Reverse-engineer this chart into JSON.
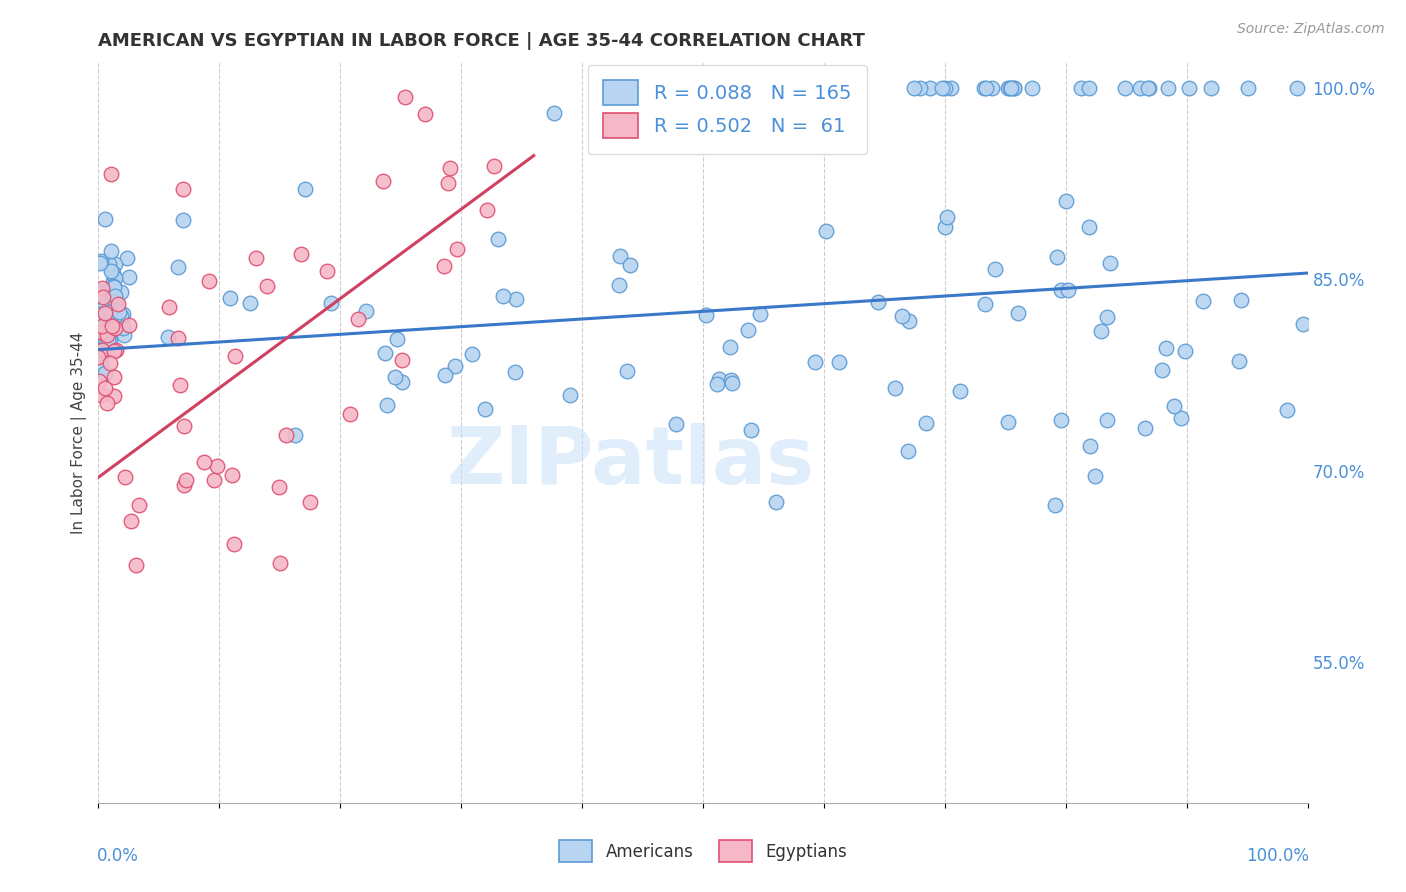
{
  "title": "AMERICAN VS EGYPTIAN IN LABOR FORCE | AGE 35-44 CORRELATION CHART",
  "source": "Source: ZipAtlas.com",
  "ylabel": "In Labor Force | Age 35-44",
  "right_yticks": [
    "55.0%",
    "70.0%",
    "85.0%",
    "100.0%"
  ],
  "right_ytick_vals": [
    0.55,
    0.7,
    0.85,
    1.0
  ],
  "legend_american": {
    "R": 0.088,
    "N": 165
  },
  "legend_egyptian": {
    "R": 0.502,
    "N": 61
  },
  "american_fill_color": "#b8d4f0",
  "american_edge_color": "#5b9bd5",
  "egyptian_fill_color": "#f4b8c8",
  "egyptian_edge_color": "#e05070",
  "american_line_color": "#3a78c9",
  "egyptian_line_color": "#d04060",
  "watermark": "ZIPatlas",
  "ymin": 0.44,
  "ymax": 1.02,
  "xmin": 0.0,
  "xmax": 1.0
}
